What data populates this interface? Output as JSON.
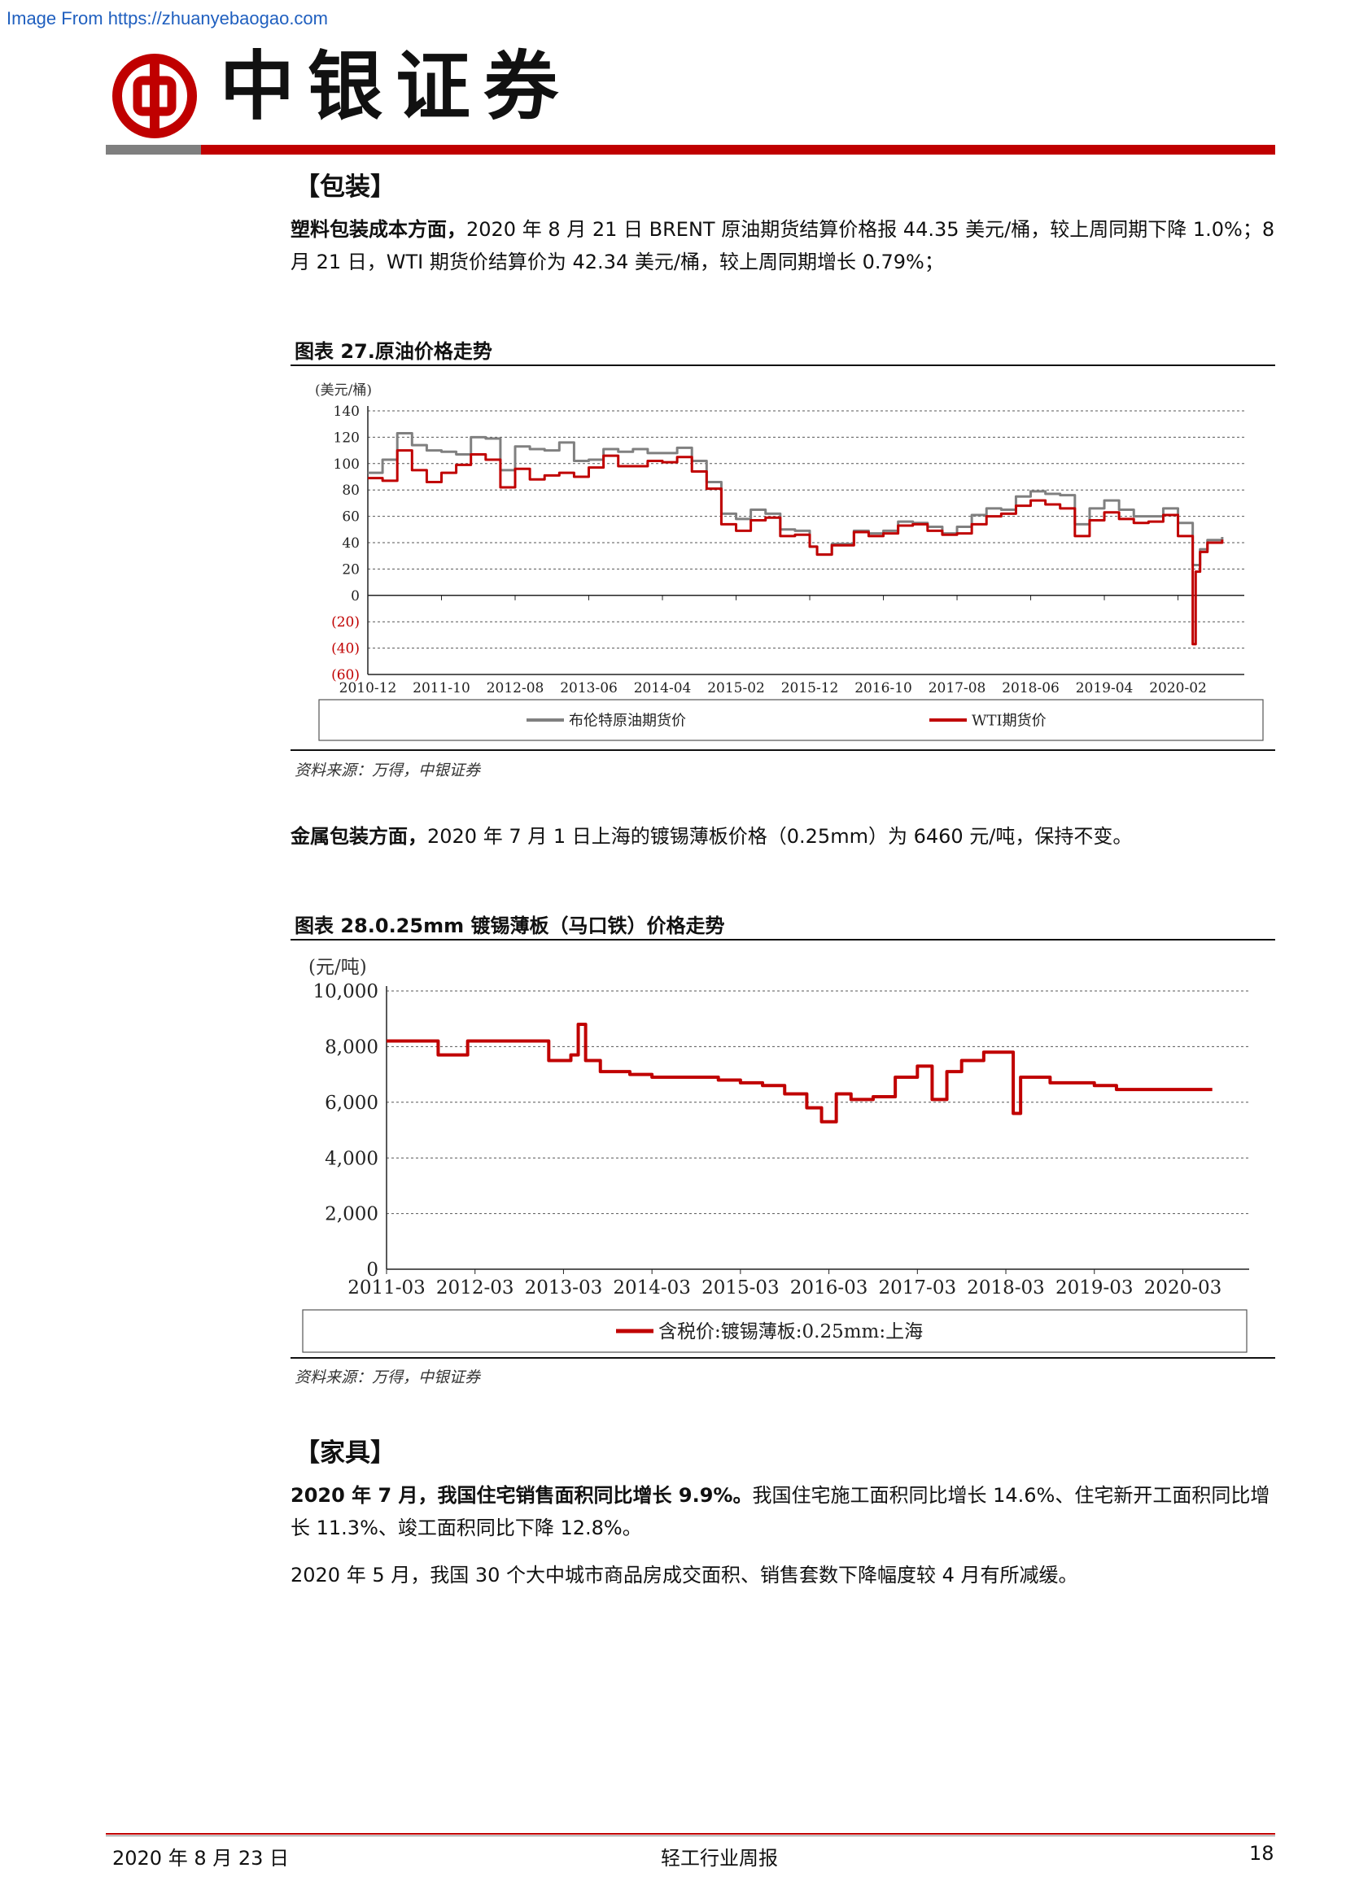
{
  "watermark": "Image From https://zhuanyebaogao.com",
  "brand": {
    "name": "中银证券",
    "colors": {
      "red": "#c00000",
      "grey": "#7f7f7f"
    }
  },
  "sections": {
    "packaging": {
      "title": "【包装】",
      "p1_bold": "塑料包装成本方面，",
      "p1_text": "2020 年 8 月 21 日 BRENT 原油期货结算价格报 44.35 美元/桶，较上周同期下降 1.0%；8 月 21 日，WTI 期货价结算价为 42.34 美元/桶，较上周同期增长 0.79%；",
      "p2_bold": "金属包装方面，",
      "p2_text": "2020 年 7 月 1 日上海的镀锡薄板价格（0.25mm）为 6460 元/吨，保持不变。"
    },
    "furniture": {
      "title": "【家具】",
      "p1_bold": "2020 年 7 月，我国住宅销售面积同比增长 9.9%。",
      "p1_text": "我国住宅施工面积同比增长 14.6%、住宅新开工面积同比增长 11.3%、竣工面积同比下降 12.8%。",
      "p2_text": "2020 年 5 月，我国 30 个大中城市商品房成交面积、销售套数下降幅度较 4 月有所减缓。"
    }
  },
  "figures": {
    "fig27": {
      "title": "图表 27.原油价格走势",
      "source": "资料来源：万得，中银证券"
    },
    "fig28": {
      "title": "图表 28.0.25mm 镀锡薄板（马口铁）价格走势",
      "source": "资料来源：万得，中银证券"
    }
  },
  "chart_data": [
    {
      "type": "line",
      "ylabel": "(美元/桶)",
      "ylim": [
        -60,
        140
      ],
      "yticks": [
        140,
        120,
        100,
        80,
        60,
        40,
        20,
        0,
        -20,
        -40,
        -60
      ],
      "ytick_labels": [
        "140",
        "120",
        "100",
        "80",
        "60",
        "40",
        "20",
        "0",
        "(20)",
        "(40)",
        "(60)"
      ],
      "xtick_labels": [
        "2010-12",
        "2011-10",
        "2012-08",
        "2013-06",
        "2014-04",
        "2015-02",
        "2015-12",
        "2016-10",
        "2017-08",
        "2018-06",
        "2019-04",
        "2020-02"
      ],
      "grid": "horizontal-dashed",
      "legend": "bottom",
      "series": [
        {
          "name": "布伦特原油期货价",
          "color": "#808080",
          "points": [
            [
              "2010-12",
              93
            ],
            [
              "2011-02",
              103
            ],
            [
              "2011-04",
              123
            ],
            [
              "2011-06",
              114
            ],
            [
              "2011-08",
              110
            ],
            [
              "2011-10",
              109
            ],
            [
              "2011-12",
              107
            ],
            [
              "2012-02",
              120
            ],
            [
              "2012-04",
              119
            ],
            [
              "2012-06",
              95
            ],
            [
              "2012-08",
              113
            ],
            [
              "2012-10",
              111
            ],
            [
              "2012-12",
              110
            ],
            [
              "2013-02",
              116
            ],
            [
              "2013-04",
              102
            ],
            [
              "2013-06",
              103
            ],
            [
              "2013-08",
              111
            ],
            [
              "2013-10",
              109
            ],
            [
              "2013-12",
              111
            ],
            [
              "2014-02",
              108
            ],
            [
              "2014-04",
              108
            ],
            [
              "2014-06",
              112
            ],
            [
              "2014-08",
              102
            ],
            [
              "2014-10",
              86
            ],
            [
              "2014-12",
              62
            ],
            [
              "2015-02",
              58
            ],
            [
              "2015-04",
              65
            ],
            [
              "2015-06",
              62
            ],
            [
              "2015-08",
              50
            ],
            [
              "2015-10",
              49
            ],
            [
              "2015-12",
              37
            ],
            [
              "2016-01",
              31
            ],
            [
              "2016-03",
              39
            ],
            [
              "2016-06",
              49
            ],
            [
              "2016-08",
              47
            ],
            [
              "2016-10",
              49
            ],
            [
              "2016-12",
              56
            ],
            [
              "2017-02",
              55
            ],
            [
              "2017-04",
              52
            ],
            [
              "2017-06",
              47
            ],
            [
              "2017-08",
              52
            ],
            [
              "2017-10",
              61
            ],
            [
              "2017-12",
              66
            ],
            [
              "2018-02",
              65
            ],
            [
              "2018-04",
              75
            ],
            [
              "2018-06",
              79
            ],
            [
              "2018-08",
              77
            ],
            [
              "2018-10",
              76
            ],
            [
              "2018-12",
              54
            ],
            [
              "2019-02",
              66
            ],
            [
              "2019-04",
              72
            ],
            [
              "2019-06",
              65
            ],
            [
              "2019-08",
              60
            ],
            [
              "2019-10",
              60
            ],
            [
              "2019-12",
              66
            ],
            [
              "2020-02",
              55
            ],
            [
              "2020-04",
              23
            ],
            [
              "2020-05",
              35
            ],
            [
              "2020-06",
              42
            ],
            [
              "2020-08",
              44.35
            ]
          ]
        },
        {
          "name": "WTI期货价",
          "color": "#c00000",
          "points": [
            [
              "2010-12",
              89
            ],
            [
              "2011-02",
              87
            ],
            [
              "2011-04",
              110
            ],
            [
              "2011-06",
              95
            ],
            [
              "2011-08",
              86
            ],
            [
              "2011-10",
              93
            ],
            [
              "2011-12",
              99
            ],
            [
              "2012-02",
              107
            ],
            [
              "2012-04",
              103
            ],
            [
              "2012-06",
              82
            ],
            [
              "2012-08",
              96
            ],
            [
              "2012-10",
              88
            ],
            [
              "2012-12",
              91
            ],
            [
              "2013-02",
              93
            ],
            [
              "2013-04",
              90
            ],
            [
              "2013-06",
              97
            ],
            [
              "2013-08",
              106
            ],
            [
              "2013-10",
              98
            ],
            [
              "2013-12",
              98
            ],
            [
              "2014-02",
              102
            ],
            [
              "2014-04",
              101
            ],
            [
              "2014-06",
              105
            ],
            [
              "2014-08",
              94
            ],
            [
              "2014-10",
              81
            ],
            [
              "2014-12",
              54
            ],
            [
              "2015-02",
              49
            ],
            [
              "2015-04",
              57
            ],
            [
              "2015-06",
              59
            ],
            [
              "2015-08",
              45
            ],
            [
              "2015-10",
              46
            ],
            [
              "2015-12",
              37
            ],
            [
              "2016-01",
              31
            ],
            [
              "2016-03",
              38
            ],
            [
              "2016-06",
              48
            ],
            [
              "2016-08",
              45
            ],
            [
              "2016-10",
              47
            ],
            [
              "2016-12",
              53
            ],
            [
              "2017-02",
              54
            ],
            [
              "2017-04",
              49
            ],
            [
              "2017-06",
              46
            ],
            [
              "2017-08",
              47
            ],
            [
              "2017-10",
              54
            ],
            [
              "2017-12",
              60
            ],
            [
              "2018-02",
              62
            ],
            [
              "2018-04",
              68
            ],
            [
              "2018-06",
              72
            ],
            [
              "2018-08",
              69
            ],
            [
              "2018-10",
              66
            ],
            [
              "2018-12",
              45
            ],
            [
              "2019-02",
              57
            ],
            [
              "2019-04",
              63
            ],
            [
              "2019-06",
              58
            ],
            [
              "2019-08",
              55
            ],
            [
              "2019-10",
              56
            ],
            [
              "2019-12",
              61
            ],
            [
              "2020-02",
              45
            ],
            [
              "2020-04",
              -37
            ],
            [
              "2020-04b",
              18
            ],
            [
              "2020-05",
              33
            ],
            [
              "2020-06",
              40
            ],
            [
              "2020-08",
              42.34
            ]
          ]
        }
      ]
    },
    {
      "type": "line",
      "ylabel": "(元/吨)",
      "ylim": [
        0,
        10000
      ],
      "yticks": [
        10000,
        8000,
        6000,
        4000,
        2000,
        0
      ],
      "ytick_labels": [
        "10,000",
        "8,000",
        "6,000",
        "4,000",
        "2,000",
        "0"
      ],
      "xtick_labels": [
        "2011-03",
        "2012-03",
        "2013-03",
        "2014-03",
        "2015-03",
        "2016-03",
        "2017-03",
        "2018-03",
        "2019-03",
        "2020-03"
      ],
      "grid": "horizontal-dashed",
      "legend": "bottom",
      "series": [
        {
          "name": "含税价:镀锡薄板:0.25mm:上海",
          "color": "#c00000",
          "points": [
            [
              "2011-03",
              8200
            ],
            [
              "2011-09",
              8200
            ],
            [
              "2011-10",
              7700
            ],
            [
              "2012-01",
              7700
            ],
            [
              "2012-02",
              8200
            ],
            [
              "2012-06",
              8200
            ],
            [
              "2012-12",
              8200
            ],
            [
              "2013-01",
              7500
            ],
            [
              "2013-04",
              7700
            ],
            [
              "2013-05",
              8800
            ],
            [
              "2013-06",
              7500
            ],
            [
              "2013-08",
              7100
            ],
            [
              "2013-12",
              7000
            ],
            [
              "2014-03",
              6900
            ],
            [
              "2014-06",
              6900
            ],
            [
              "2014-12",
              6800
            ],
            [
              "2015-03",
              6700
            ],
            [
              "2015-06",
              6600
            ],
            [
              "2015-09",
              6300
            ],
            [
              "2015-12",
              5800
            ],
            [
              "2016-02",
              5300
            ],
            [
              "2016-04",
              6300
            ],
            [
              "2016-06",
              6100
            ],
            [
              "2016-09",
              6200
            ],
            [
              "2016-12",
              6900
            ],
            [
              "2017-03",
              7300
            ],
            [
              "2017-05",
              6100
            ],
            [
              "2017-07",
              7100
            ],
            [
              "2017-09",
              7500
            ],
            [
              "2017-12",
              7800
            ],
            [
              "2018-03",
              7800
            ],
            [
              "2018-04",
              5600
            ],
            [
              "2018-05",
              6900
            ],
            [
              "2018-09",
              6700
            ],
            [
              "2019-03",
              6600
            ],
            [
              "2019-06",
              6460
            ],
            [
              "2020-07",
              6460
            ]
          ]
        }
      ]
    }
  ],
  "footer": {
    "date": "2020 年 8 月 23 日",
    "title": "轻工行业周报",
    "page": "18"
  }
}
